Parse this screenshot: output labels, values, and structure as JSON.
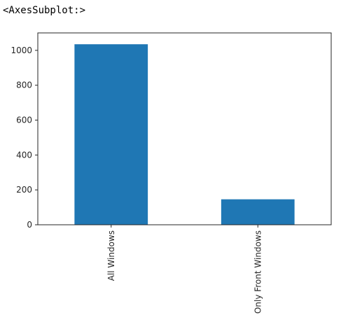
{
  "output": {
    "repr_text": "<AxesSubplot:>"
  },
  "chart_data": {
    "type": "bar",
    "categories": [
      "All Windows",
      "Only Front Windows"
    ],
    "values": [
      1035,
      146
    ],
    "ylim": [
      0,
      1100
    ],
    "yticks": [
      0,
      200,
      400,
      600,
      800,
      1000
    ],
    "ytick_labels": [
      "0",
      "200",
      "400",
      "600",
      "800",
      "1000"
    ],
    "xtick_rotation": 90,
    "grid": false,
    "bar_color": "#1f77b4",
    "axis_color": "#262626",
    "title": "",
    "xlabel": "",
    "ylabel": ""
  }
}
